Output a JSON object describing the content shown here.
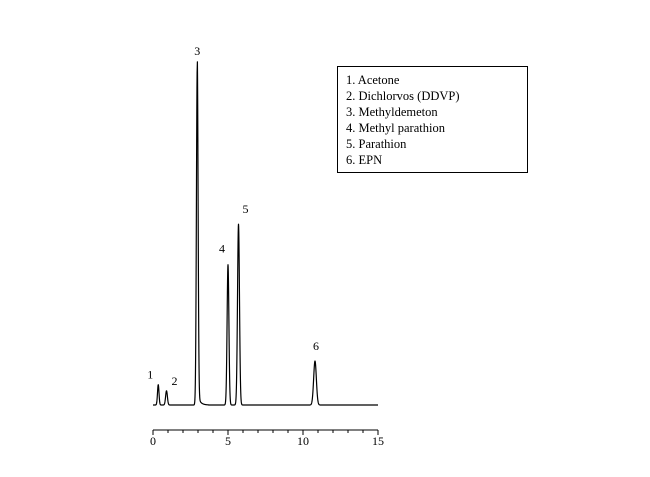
{
  "chart_data": {
    "type": "line",
    "title": "",
    "xlabel": "",
    "ylabel": "",
    "xlim": [
      0,
      15
    ],
    "ylim": [
      0,
      100
    ],
    "x_ticks": [
      0,
      5,
      10,
      15
    ],
    "x_tick_labels": [
      "0",
      "5",
      "10",
      "15"
    ],
    "grid": false,
    "legend_position": "top-right",
    "peaks": [
      {
        "label": "1",
        "retention_time": 0.35,
        "height": 6.0
      },
      {
        "label": "2",
        "retention_time": 0.9,
        "height": 4.2
      },
      {
        "label": "3",
        "retention_time": 2.95,
        "height": 100.0
      },
      {
        "label": "4",
        "retention_time": 5.0,
        "height": 41.5
      },
      {
        "label": "5",
        "retention_time": 5.7,
        "height": 53.5
      },
      {
        "label": "6",
        "retention_time": 10.8,
        "height": 13.0
      }
    ],
    "legend": [
      "1. Acetone",
      "2. Dichlorvos (DDVP)",
      "3. Methyldemeton",
      "4. Methyl parathion",
      "5. Parathion",
      "6. EPN"
    ]
  }
}
